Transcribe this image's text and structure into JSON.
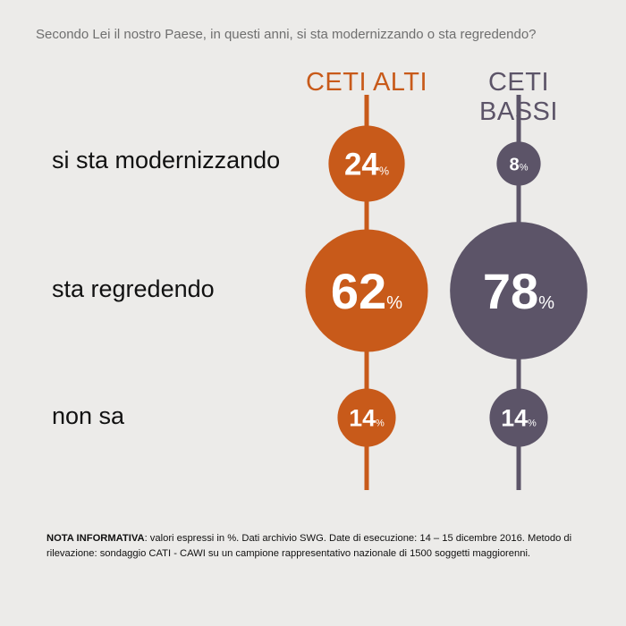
{
  "question": "Secondo Lei il nostro Paese, in questi anni, si sta modernizzando o sta regredendo?",
  "chart_data": {
    "type": "bubble",
    "groups": [
      {
        "name": "CETI ALTI",
        "color": "#c85a1a"
      },
      {
        "name": "CETI BASSI",
        "color": "#5c5468"
      }
    ],
    "rows": [
      "si sta modernizzando",
      "sta regredendo",
      "non sa"
    ],
    "series": [
      {
        "name": "CETI ALTI",
        "values": [
          24,
          62,
          14
        ]
      },
      {
        "name": "CETI BASSI",
        "values": [
          8,
          78,
          14
        ]
      }
    ],
    "unit": "%"
  },
  "note": {
    "label": "NOTA INFORMATIVA",
    "text": ": valori espressi in %. Dati archivio SWG. Date di esecuzione: 14 – 15 dicembre 2016. Metodo di rilevazione: sondaggio CATI - CAWI su un campione rappresentativo nazionale di 1500 soggetti maggiorenni."
  }
}
